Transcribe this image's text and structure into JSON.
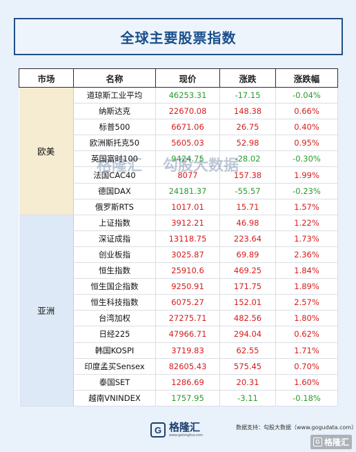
{
  "title": "全球主要股票指数",
  "headers": [
    "市场",
    "名称",
    "现价",
    "涨跌",
    "涨跌幅"
  ],
  "groups": [
    {
      "market": "欧美",
      "rows": [
        {
          "name": "道琼斯工业平均",
          "price": "46253.31",
          "change": "-17.15",
          "pct": "-0.04%",
          "dir": "down"
        },
        {
          "name": "纳斯达克",
          "price": "22670.08",
          "change": "148.38",
          "pct": "0.66%",
          "dir": "up"
        },
        {
          "name": "标普500",
          "price": "6671.06",
          "change": "26.75",
          "pct": "0.40%",
          "dir": "up"
        },
        {
          "name": "欧洲斯托克50",
          "price": "5605.03",
          "change": "52.98",
          "pct": "0.95%",
          "dir": "up"
        },
        {
          "name": "英国富时100",
          "price": "9424.75",
          "change": "-28.02",
          "pct": "-0.30%",
          "dir": "down"
        },
        {
          "name": "法国CAC40",
          "price": "8077",
          "change": "157.38",
          "pct": "1.99%",
          "dir": "up"
        },
        {
          "name": "德国DAX",
          "price": "24181.37",
          "change": "-55.57",
          "pct": "-0.23%",
          "dir": "down"
        },
        {
          "name": "俄罗斯RTS",
          "price": "1017.01",
          "change": "15.71",
          "pct": "1.57%",
          "dir": "up"
        }
      ]
    },
    {
      "market": "亚洲",
      "rows": [
        {
          "name": "上证指数",
          "price": "3912.21",
          "change": "46.98",
          "pct": "1.22%",
          "dir": "up"
        },
        {
          "name": "深证成指",
          "price": "13118.75",
          "change": "223.64",
          "pct": "1.73%",
          "dir": "up"
        },
        {
          "name": "创业板指",
          "price": "3025.87",
          "change": "69.89",
          "pct": "2.36%",
          "dir": "up"
        },
        {
          "name": "恒生指数",
          "price": "25910.6",
          "change": "469.25",
          "pct": "1.84%",
          "dir": "up"
        },
        {
          "name": "恒生国企指数",
          "price": "9250.91",
          "change": "171.75",
          "pct": "1.89%",
          "dir": "up"
        },
        {
          "name": "恒生科技指数",
          "price": "6075.27",
          "change": "152.01",
          "pct": "2.57%",
          "dir": "up"
        },
        {
          "name": "台湾加权",
          "price": "27275.71",
          "change": "482.56",
          "pct": "1.80%",
          "dir": "up"
        },
        {
          "name": "日经225",
          "price": "47966.71",
          "change": "294.04",
          "pct": "0.62%",
          "dir": "up"
        },
        {
          "name": "韩国KOSPI",
          "price": "3719.83",
          "change": "62.55",
          "pct": "1.71%",
          "dir": "up"
        },
        {
          "name": "印度孟买Sensex",
          "price": "82605.43",
          "change": "575.45",
          "pct": "0.70%",
          "dir": "up"
        },
        {
          "name": "泰国SET",
          "price": "1286.69",
          "change": "20.31",
          "pct": "1.60%",
          "dir": "up"
        },
        {
          "name": "越南VNINDEX",
          "price": "1757.95",
          "change": "-3.11",
          "pct": "-0.18%",
          "dir": "down"
        }
      ]
    }
  ],
  "colors": {
    "up": "#d61c1c",
    "down": "#2a9a2a",
    "title": "#1b4f8c",
    "eu_bg": "#f5ecd2",
    "asia_bg": "#dde9f6"
  },
  "footer": {
    "source": "数据支持：勾股大数据（www.gogudata.com）",
    "logo_cn": "格隆汇",
    "logo_url": "www.gelonghui.com",
    "logo_mark": "G",
    "corner_logo": "格隆汇"
  },
  "watermark": {
    "left": "格隆汇",
    "right": "勾股大数据",
    "left_url": "www.gelonghui.com",
    "right_url": "www.gogudata.com"
  }
}
